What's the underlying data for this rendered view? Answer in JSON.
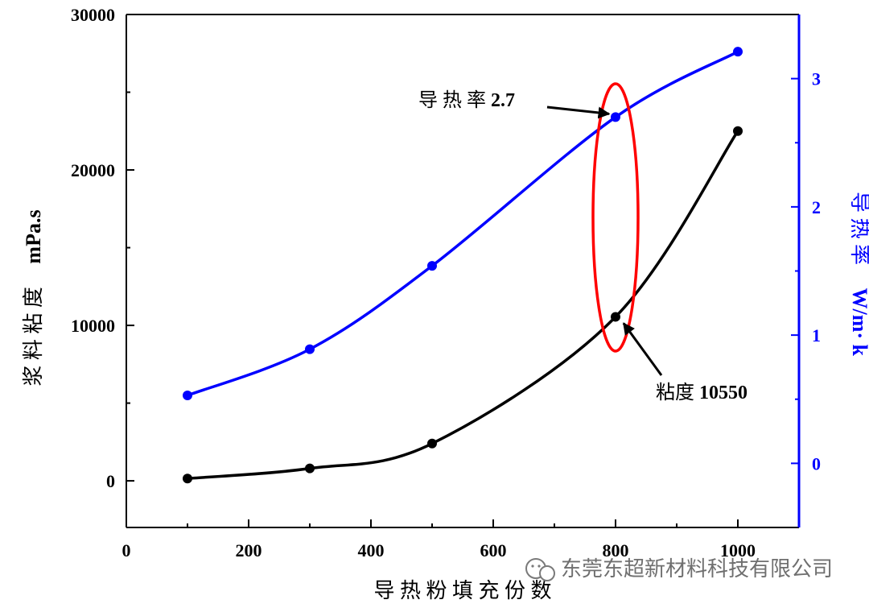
{
  "chart_data": {
    "type": "line",
    "x": [
      100,
      300,
      500,
      800,
      1000
    ],
    "xlabel": "导 热 粉 填 充 份 数",
    "xlim": [
      0,
      1100
    ],
    "xticks": [
      "0",
      "200",
      "400",
      "600",
      "800",
      "1000"
    ],
    "xtick_values": [
      0,
      200,
      400,
      600,
      800,
      1000
    ],
    "y_left": {
      "label_cn": "浆 料 粘 度",
      "label_unit": "mPa.s",
      "ylim": [
        -3000,
        30000
      ],
      "ticks": [
        "0",
        "10000",
        "20000",
        "30000"
      ],
      "tick_values": [
        0,
        10000,
        20000,
        30000
      ],
      "color": "#000000"
    },
    "y_right": {
      "label_cn": "导 热 率",
      "label_unit": "W/m· k",
      "ylim": [
        -0.5,
        3.5
      ],
      "ticks": [
        "0",
        "1",
        "2",
        "3"
      ],
      "tick_values": [
        0,
        1,
        2,
        3
      ],
      "color": "#0000ff"
    },
    "series": [
      {
        "axis": "left",
        "color": "#000000",
        "values": [
          150,
          800,
          2400,
          10550,
          22500
        ]
      },
      {
        "axis": "right",
        "color": "#0000ff",
        "values": [
          0.53,
          0.89,
          1.54,
          2.7,
          3.21
        ]
      }
    ],
    "annotations": [
      {
        "text": "导 热 率 2.7",
        "target_series": 1,
        "target_x": 800,
        "target_y": 2.7
      },
      {
        "text": "粘度 10550",
        "target_series": 0,
        "target_x": 800,
        "target_y": 10550
      }
    ],
    "highlight": {
      "shape": "ellipse",
      "color": "#ff0000",
      "around_x": 800
    }
  },
  "watermark": {
    "text": "东莞东超新材料科技有限公司",
    "icon": "wechat-icon"
  }
}
